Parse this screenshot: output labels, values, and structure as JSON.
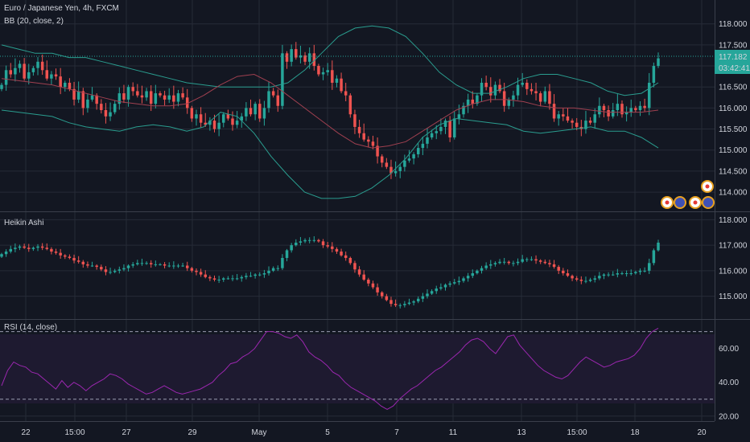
{
  "header": {
    "symbol": "Euro / Japanese Yen, 4h, FXCM",
    "bb_label": "BB (20, close, 2)",
    "ha_label": "Heikin Ashi",
    "rsi_label": "RSI (14, close)"
  },
  "price_tag": {
    "value": "117.182",
    "countdown": "03:42:41"
  },
  "colors": {
    "background": "#131722",
    "grid": "#262b37",
    "up": "#26a69a",
    "down": "#ef5350",
    "bb_band": "#2a9d8f",
    "bb_basis": "#a04050",
    "rsi_line": "#9c27b0",
    "rsi_fill": "#2a1e3c"
  },
  "chart_data": [
    {
      "type": "candlestick",
      "title": "Euro / Japanese Yen, 4h, FXCM",
      "indicator": "BB (20, close, 2)",
      "y_ticks": [
        "118.000",
        "117.500",
        "117.000",
        "116.500",
        "116.000",
        "115.500",
        "115.000",
        "114.500",
        "114.000"
      ],
      "ylim": [
        113.6,
        118.3
      ],
      "x_ticks": [
        "22",
        "15:00",
        "27",
        "29",
        "May",
        "5",
        "7",
        "11",
        "13",
        "15:00",
        "18",
        "20"
      ],
      "close_series": [
        116.55,
        116.9,
        116.8,
        116.95,
        117.05,
        116.7,
        116.85,
        116.95,
        117.1,
        116.9,
        116.7,
        116.8,
        116.75,
        116.5,
        116.6,
        116.45,
        116.2,
        116.4,
        116.0,
        116.2,
        116.3,
        116.1,
        115.95,
        115.8,
        115.9,
        116.1,
        116.35,
        116.2,
        116.5,
        116.4,
        116.3,
        116.25,
        116.4,
        116.1,
        116.35,
        116.3,
        116.2,
        116.3,
        116.15,
        116.35,
        116.25,
        116.0,
        115.75,
        115.85,
        115.65,
        115.6,
        115.7,
        115.5,
        115.65,
        115.85,
        115.75,
        115.6,
        115.7,
        115.8,
        116.0,
        115.85,
        116.1,
        115.75,
        116.0,
        116.4,
        116.3,
        116.05,
        117.3,
        117.1,
        117.4,
        117.2,
        117.25,
        117.1,
        117.3,
        117.0,
        116.8,
        116.85,
        116.9,
        116.6,
        116.7,
        116.4,
        116.3,
        115.85,
        115.55,
        115.4,
        115.25,
        115.2,
        115.1,
        114.85,
        114.7,
        114.6,
        114.45,
        114.5,
        114.6,
        114.75,
        114.8,
        114.9,
        115.05,
        115.15,
        115.3,
        115.4,
        115.45,
        115.55,
        115.7,
        115.3,
        115.75,
        115.85,
        116.05,
        116.2,
        116.1,
        116.3,
        116.6,
        116.5,
        116.3,
        116.55,
        116.4,
        116.05,
        116.2,
        116.3,
        116.55,
        116.6,
        116.45,
        116.4,
        116.35,
        116.15,
        116.4,
        116.1,
        115.75,
        115.85,
        115.8,
        115.7,
        115.65,
        115.55,
        115.5,
        115.7,
        115.65,
        115.85,
        116.05,
        115.95,
        115.8,
        115.95,
        116.1,
        115.85,
        115.9,
        116.0,
        115.95,
        116.05,
        116.0,
        116.6,
        117.0,
        117.18
      ],
      "bb_upper": [
        117.5,
        117.4,
        117.3,
        117.3,
        117.2,
        117.2,
        117.1,
        117.0,
        116.9,
        116.8,
        116.7,
        116.6,
        116.55,
        116.5,
        116.5,
        116.5,
        116.5,
        116.6,
        116.9,
        117.3,
        117.7,
        117.9,
        117.95,
        117.9,
        117.7,
        117.3,
        116.85,
        116.55,
        116.35,
        116.35,
        116.5,
        116.7,
        116.8,
        116.8,
        116.7,
        116.6,
        116.4,
        116.3,
        116.35,
        116.6
      ],
      "bb_basis": [
        116.7,
        116.65,
        116.6,
        116.55,
        116.45,
        116.35,
        116.25,
        116.15,
        116.1,
        116.05,
        116.05,
        116.1,
        116.3,
        116.55,
        116.75,
        116.8,
        116.6,
        116.3,
        116.0,
        115.7,
        115.4,
        115.15,
        115.05,
        115.1,
        115.2,
        115.45,
        115.7,
        115.95,
        116.1,
        116.2,
        116.2,
        116.15,
        116.05,
        116.0,
        116.0,
        115.95,
        115.9,
        115.9,
        115.9,
        115.95
      ],
      "bb_lower": [
        115.95,
        115.9,
        115.85,
        115.8,
        115.65,
        115.55,
        115.5,
        115.45,
        115.55,
        115.6,
        115.55,
        115.45,
        115.55,
        115.9,
        115.8,
        115.4,
        114.85,
        114.4,
        114.0,
        113.85,
        113.85,
        113.9,
        114.1,
        114.4,
        114.8,
        115.3,
        115.6,
        115.75,
        115.7,
        115.65,
        115.6,
        115.45,
        115.4,
        115.45,
        115.5,
        115.55,
        115.45,
        115.45,
        115.3,
        115.05
      ]
    },
    {
      "type": "candlestick",
      "title": "Heikin Ashi",
      "y_ticks": [
        "118.000",
        "117.000",
        "116.000",
        "115.000"
      ],
      "ylim": [
        114.2,
        118.2
      ],
      "close_series": [
        116.65,
        116.75,
        116.85,
        116.9,
        116.95,
        116.9,
        116.85,
        116.9,
        116.95,
        116.9,
        116.85,
        116.75,
        116.7,
        116.6,
        116.55,
        116.5,
        116.4,
        116.35,
        116.25,
        116.2,
        116.2,
        116.15,
        116.05,
        115.95,
        115.95,
        116.0,
        116.05,
        116.1,
        116.2,
        116.25,
        116.3,
        116.3,
        116.3,
        116.25,
        116.25,
        116.25,
        116.2,
        116.2,
        116.2,
        116.2,
        116.2,
        116.1,
        116.0,
        115.95,
        115.85,
        115.75,
        115.7,
        115.65,
        115.65,
        115.7,
        115.7,
        115.7,
        115.7,
        115.75,
        115.8,
        115.8,
        115.85,
        115.85,
        115.9,
        116.0,
        116.1,
        116.1,
        116.5,
        116.8,
        117.0,
        117.1,
        117.15,
        117.2,
        117.2,
        117.2,
        117.15,
        117.0,
        116.95,
        116.85,
        116.75,
        116.6,
        116.5,
        116.3,
        116.05,
        115.85,
        115.65,
        115.5,
        115.35,
        115.15,
        115.0,
        114.85,
        114.7,
        114.65,
        114.65,
        114.7,
        114.75,
        114.8,
        114.9,
        115.0,
        115.1,
        115.2,
        115.3,
        115.35,
        115.45,
        115.5,
        115.55,
        115.6,
        115.7,
        115.8,
        115.9,
        116.0,
        116.1,
        116.2,
        116.25,
        116.3,
        116.35,
        116.35,
        116.3,
        116.3,
        116.35,
        116.45,
        116.45,
        116.45,
        116.4,
        116.35,
        116.3,
        116.25,
        116.15,
        116.0,
        115.9,
        115.8,
        115.7,
        115.65,
        115.6,
        115.6,
        115.65,
        115.7,
        115.8,
        115.85,
        115.85,
        115.85,
        115.9,
        115.9,
        115.9,
        115.9,
        115.95,
        116.0,
        116.0,
        116.3,
        116.8,
        117.1
      ]
    },
    {
      "type": "line",
      "title": "RSI (14, close)",
      "y_ticks": [
        "60.00",
        "40.00",
        "20.00"
      ],
      "ylim": [
        18,
        76
      ],
      "bands": [
        70,
        30
      ],
      "values": [
        38,
        47,
        52,
        50,
        49,
        46,
        45,
        42,
        39,
        36,
        41,
        37,
        40,
        38,
        35,
        38,
        40,
        42,
        45,
        44,
        42,
        39,
        37,
        35,
        33,
        34,
        36,
        38,
        36,
        34,
        33,
        34,
        35,
        36,
        38,
        40,
        44,
        47,
        51,
        52,
        55,
        57,
        60,
        65,
        70,
        70,
        69,
        67,
        66,
        68,
        64,
        58,
        55,
        53,
        50,
        46,
        44,
        40,
        37,
        35,
        33,
        31,
        29,
        26,
        24,
        26,
        30,
        33,
        36,
        38,
        41,
        44,
        47,
        49,
        52,
        55,
        58,
        62,
        65,
        66,
        64,
        60,
        57,
        62,
        67,
        68,
        62,
        58,
        54,
        50,
        47,
        45,
        43,
        42,
        44,
        48,
        52,
        55,
        53,
        51,
        49,
        50,
        52,
        53,
        54,
        56,
        60,
        66,
        70,
        72
      ]
    }
  ],
  "axis": {
    "x_labels": [
      "22",
      "15:00",
      "27",
      "29",
      "May",
      "5",
      "7",
      "11",
      "13",
      "15:00",
      "18",
      "20"
    ]
  }
}
